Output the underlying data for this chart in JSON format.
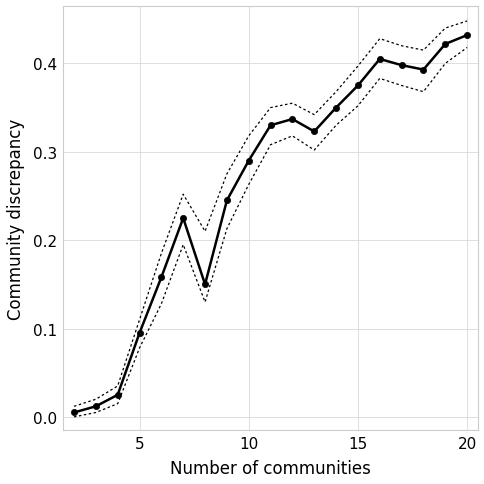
{
  "x": [
    2,
    3,
    4,
    5,
    6,
    7,
    8,
    9,
    10,
    11,
    12,
    13,
    14,
    15,
    16,
    17,
    18,
    19,
    20
  ],
  "y": [
    0.005,
    0.012,
    0.025,
    0.095,
    0.158,
    0.225,
    0.15,
    0.245,
    0.29,
    0.33,
    0.337,
    0.323,
    0.35,
    0.375,
    0.405,
    0.398,
    0.393,
    0.422,
    0.432
  ],
  "y_upper": [
    0.012,
    0.02,
    0.035,
    0.11,
    0.185,
    0.252,
    0.21,
    0.275,
    0.318,
    0.35,
    0.355,
    0.342,
    0.368,
    0.397,
    0.428,
    0.42,
    0.415,
    0.44,
    0.448
  ],
  "y_lower": [
    0.0,
    0.005,
    0.015,
    0.078,
    0.128,
    0.195,
    0.13,
    0.213,
    0.263,
    0.308,
    0.318,
    0.302,
    0.33,
    0.352,
    0.383,
    0.375,
    0.368,
    0.4,
    0.418
  ],
  "xlabel": "Number of communities",
  "ylabel": "Community discrepancy",
  "xlim": [
    1.5,
    20.5
  ],
  "ylim": [
    -0.015,
    0.465
  ],
  "xticks": [
    5,
    10,
    15,
    20
  ],
  "yticks": [
    0.0,
    0.1,
    0.2,
    0.3,
    0.4
  ],
  "line_color": "#000000",
  "band_color": "#000000",
  "background_color": "#ffffff",
  "grid_color": "#d9d9d9",
  "point_size": 4.5,
  "line_width": 1.8,
  "band_linewidth": 0.9,
  "xlabel_fontsize": 12,
  "ylabel_fontsize": 12,
  "tick_fontsize": 11
}
